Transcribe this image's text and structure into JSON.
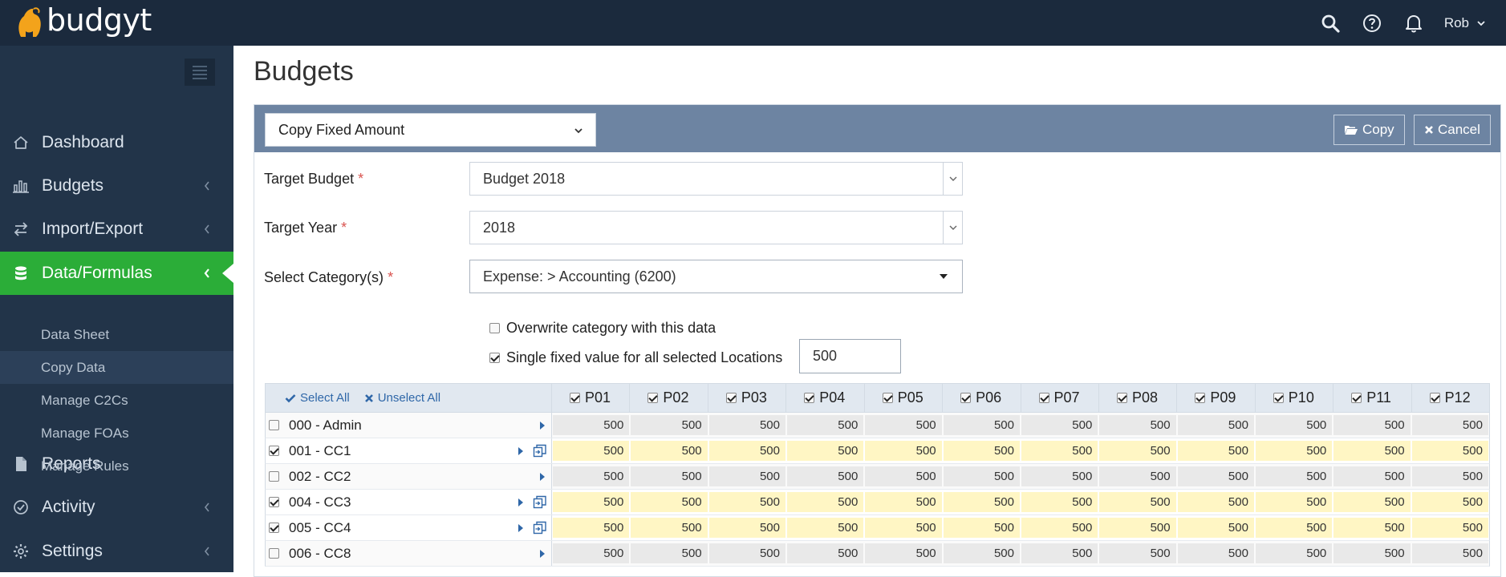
{
  "app": {
    "logo_text": "budgyt",
    "user_name": "Rob"
  },
  "sidebar": {
    "items": [
      {
        "label": "Dashboard",
        "icon": "home-icon"
      },
      {
        "label": "Budgets",
        "icon": "bar-chart-icon"
      },
      {
        "label": "Import/Export",
        "icon": "exchange-icon"
      },
      {
        "label": "Data/Formulas",
        "icon": "database-icon"
      },
      {
        "label": "Reports",
        "icon": "file-icon"
      },
      {
        "label": "Activity",
        "icon": "check-circle-icon"
      },
      {
        "label": "Settings",
        "icon": "gear-icon"
      }
    ],
    "subitems": [
      {
        "label": "Data Sheet"
      },
      {
        "label": "Copy Data"
      },
      {
        "label": "Manage C2Cs"
      },
      {
        "label": "Manage FOAs"
      },
      {
        "label": "Manage Rules"
      }
    ]
  },
  "page": {
    "title": "Budgets"
  },
  "panel": {
    "method": "Copy Fixed Amount",
    "copy_label": "Copy",
    "cancel_label": "Cancel"
  },
  "form": {
    "target_budget_label": "Target Budget",
    "target_budget_value": "Budget 2018",
    "target_year_label": "Target Year",
    "target_year_value": "2018",
    "category_label": "Select Category(s)",
    "category_value": "Expense: > Accounting (6200)",
    "required_mark": "*",
    "overwrite_label": "Overwrite category with this data",
    "overwrite_checked": false,
    "single_value_label": "Single fixed value for all selected Locations",
    "single_value_checked": true,
    "fixed_value": "500"
  },
  "grid": {
    "select_all": "Select All",
    "unselect_all": "Unselect All",
    "periods": [
      "P01",
      "P02",
      "P03",
      "P04",
      "P05",
      "P06",
      "P07",
      "P08",
      "P09",
      "P10",
      "P11",
      "P12"
    ],
    "rows": [
      {
        "label": "000 - Admin",
        "checked": false,
        "values": [
          "500",
          "500",
          "500",
          "500",
          "500",
          "500",
          "500",
          "500",
          "500",
          "500",
          "500",
          "500"
        ]
      },
      {
        "label": "001 - CC1",
        "checked": true,
        "values": [
          "500",
          "500",
          "500",
          "500",
          "500",
          "500",
          "500",
          "500",
          "500",
          "500",
          "500",
          "500"
        ]
      },
      {
        "label": "002 - CC2",
        "checked": false,
        "values": [
          "500",
          "500",
          "500",
          "500",
          "500",
          "500",
          "500",
          "500",
          "500",
          "500",
          "500",
          "500"
        ]
      },
      {
        "label": "004 - CC3",
        "checked": true,
        "values": [
          "500",
          "500",
          "500",
          "500",
          "500",
          "500",
          "500",
          "500",
          "500",
          "500",
          "500",
          "500"
        ]
      },
      {
        "label": "005 - CC4",
        "checked": true,
        "values": [
          "500",
          "500",
          "500",
          "500",
          "500",
          "500",
          "500",
          "500",
          "500",
          "500",
          "500",
          "500"
        ]
      },
      {
        "label": "006 - CC8",
        "checked": false,
        "values": [
          "500",
          "500",
          "500",
          "500",
          "500",
          "500",
          "500",
          "500",
          "500",
          "500",
          "500",
          "500"
        ]
      }
    ]
  }
}
